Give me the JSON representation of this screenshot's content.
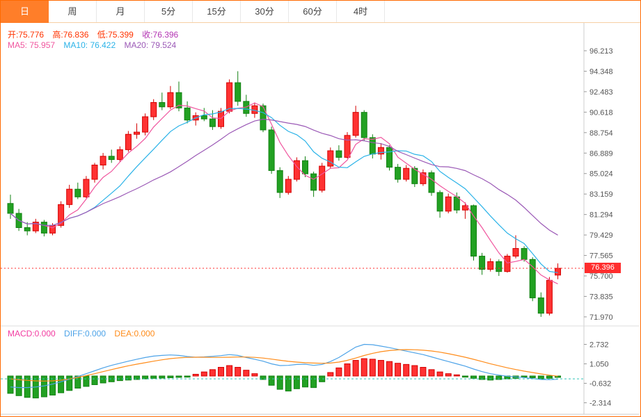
{
  "toolbar": {
    "tabs": [
      {
        "label": "日",
        "selected": true
      },
      {
        "label": "周",
        "selected": false
      },
      {
        "label": "月",
        "selected": false
      },
      {
        "label": "5分",
        "selected": false
      },
      {
        "label": "15分",
        "selected": false
      },
      {
        "label": "30分",
        "selected": false
      },
      {
        "label": "60分",
        "selected": false
      },
      {
        "label": "4时",
        "selected": false
      }
    ]
  },
  "info": {
    "open_label": "开:",
    "open": "75.776",
    "high_label": "高:",
    "high": "76.836",
    "low_label": "低:",
    "low": "75.399",
    "close_label": "收:",
    "close": "76.396",
    "ma5_label": "MA5:",
    "ma5": "75.957",
    "ma10_label": "MA10:",
    "ma10": "76.422",
    "ma20_label": "MA20:",
    "ma20": "79.524"
  },
  "macd_info": {
    "macd_label": "MACD:",
    "macd": "0.000",
    "diff_label": "DIFF:",
    "diff": "0.000",
    "dea_label": "DEA:",
    "dea": "0.000"
  },
  "price_marker": {
    "value": "76.396"
  },
  "colors": {
    "up": "#ff3232",
    "up_stroke": "#d40000",
    "down": "#22a122",
    "down_stroke": "#128112",
    "ma5": "#f0559e",
    "ma10": "#2bb3e8",
    "ma20": "#9b59b6",
    "diff": "#4da3e8",
    "dea": "#ff8c1a",
    "macd_label": "#f23ba0",
    "ohlc_red": "#ff3300",
    "close_purple": "#b334b3",
    "price_line": "#ff2d2d",
    "macd_dash_line": "#2ec4b6",
    "axis_text": "#555",
    "axis_line": "#cccccc"
  },
  "chart_data": {
    "type": "candlestick+macd",
    "main": {
      "y_ticks": [
        96.213,
        94.348,
        92.483,
        90.618,
        88.754,
        86.889,
        85.024,
        83.159,
        81.294,
        79.429,
        77.565,
        75.7,
        73.835,
        71.97
      ],
      "current_price": 76.396,
      "ma_periods": [
        5,
        10,
        20
      ],
      "candles": [
        [
          82.3,
          83.1,
          80.9,
          81.4
        ],
        [
          81.4,
          81.8,
          79.8,
          80.1
        ],
        [
          80.1,
          80.6,
          79.4,
          79.8
        ],
        [
          79.8,
          80.9,
          79.6,
          80.6
        ],
        [
          80.6,
          80.8,
          79.3,
          79.6
        ],
        [
          79.6,
          80.5,
          79.4,
          80.3
        ],
        [
          80.3,
          82.5,
          80.1,
          82.2
        ],
        [
          82.2,
          84.0,
          81.9,
          83.6
        ],
        [
          83.6,
          84.2,
          82.7,
          82.9
        ],
        [
          82.9,
          84.8,
          82.8,
          84.5
        ],
        [
          84.5,
          86.0,
          84.2,
          85.8
        ],
        [
          85.8,
          86.9,
          85.4,
          86.6
        ],
        [
          86.6,
          87.2,
          86.0,
          86.3
        ],
        [
          86.3,
          87.5,
          86.1,
          87.2
        ],
        [
          87.2,
          88.9,
          87.0,
          88.6
        ],
        [
          88.6,
          89.6,
          88.2,
          88.8
        ],
        [
          88.8,
          90.5,
          88.5,
          90.2
        ],
        [
          90.2,
          91.8,
          89.9,
          91.5
        ],
        [
          91.5,
          92.4,
          90.8,
          91.1
        ],
        [
          91.1,
          93.0,
          90.9,
          92.4
        ],
        [
          92.4,
          93.4,
          90.7,
          91.0
        ],
        [
          91.0,
          91.6,
          89.6,
          89.9
        ],
        [
          89.9,
          90.6,
          89.4,
          90.3
        ],
        [
          90.3,
          91.0,
          89.8,
          90.0
        ],
        [
          90.0,
          90.8,
          89.0,
          89.3
        ],
        [
          89.3,
          91.0,
          89.1,
          90.7
        ],
        [
          90.7,
          93.6,
          90.5,
          93.3
        ],
        [
          93.3,
          94.348,
          91.2,
          91.6
        ],
        [
          91.6,
          92.2,
          90.2,
          90.5
        ],
        [
          90.5,
          91.5,
          90.1,
          91.2
        ],
        [
          91.2,
          91.4,
          88.8,
          89.0
        ],
        [
          89.0,
          89.3,
          85.0,
          85.3
        ],
        [
          85.3,
          85.6,
          82.8,
          83.3
        ],
        [
          83.3,
          84.8,
          83.1,
          84.5
        ],
        [
          84.5,
          86.5,
          84.3,
          86.2
        ],
        [
          86.2,
          86.6,
          84.7,
          85.0
        ],
        [
          85.0,
          85.2,
          82.9,
          83.5
        ],
        [
          83.5,
          86.0,
          83.3,
          85.7
        ],
        [
          85.7,
          87.4,
          85.5,
          87.1
        ],
        [
          87.1,
          87.6,
          86.2,
          86.5
        ],
        [
          86.5,
          88.8,
          86.4,
          88.5
        ],
        [
          88.5,
          91.2,
          88.3,
          90.6
        ],
        [
          90.6,
          90.8,
          88.0,
          88.3
        ],
        [
          88.3,
          88.6,
          86.4,
          86.8
        ],
        [
          86.8,
          87.8,
          86.3,
          87.4
        ],
        [
          87.4,
          87.6,
          85.3,
          85.6
        ],
        [
          85.6,
          85.9,
          84.2,
          84.5
        ],
        [
          84.5,
          85.8,
          84.3,
          85.5
        ],
        [
          85.5,
          85.7,
          83.8,
          84.1
        ],
        [
          84.1,
          85.4,
          83.9,
          85.1
        ],
        [
          85.1,
          85.3,
          83.0,
          83.3
        ],
        [
          83.3,
          83.5,
          81.0,
          81.6
        ],
        [
          81.6,
          83.2,
          81.4,
          82.9
        ],
        [
          82.9,
          83.3,
          81.4,
          81.7
        ],
        [
          81.7,
          82.4,
          80.9,
          82.1
        ],
        [
          82.1,
          82.2,
          77.1,
          77.5
        ],
        [
          77.5,
          77.8,
          75.8,
          76.3
        ],
        [
          76.3,
          77.3,
          76.1,
          77.0
        ],
        [
          77.0,
          77.2,
          75.7,
          76.1
        ],
        [
          76.1,
          77.7,
          76.0,
          77.5
        ],
        [
          77.5,
          79.4,
          77.3,
          78.2
        ],
        [
          78.2,
          78.4,
          77.0,
          77.2
        ],
        [
          77.2,
          77.4,
          73.4,
          73.7
        ],
        [
          73.7,
          74.2,
          71.97,
          72.3
        ],
        [
          72.3,
          75.6,
          72.1,
          75.3
        ],
        [
          75.776,
          76.836,
          75.399,
          76.396
        ]
      ]
    },
    "macd": {
      "y_ticks": [
        2.732,
        1.05,
        -0.632,
        -2.314
      ],
      "current_line": -0.25,
      "hist": [
        -1.5,
        -1.7,
        -1.85,
        -1.9,
        -1.8,
        -1.65,
        -1.45,
        -1.25,
        -1.05,
        -0.9,
        -0.75,
        -0.6,
        -0.5,
        -0.4,
        -0.35,
        -0.3,
        -0.25,
        -0.2,
        -0.18,
        -0.15,
        -0.12,
        -0.1,
        0.15,
        0.35,
        0.55,
        0.75,
        0.9,
        0.75,
        0.5,
        0.2,
        -0.3,
        -0.8,
        -1.15,
        -1.3,
        -1.1,
        -0.95,
        -1.0,
        -0.5,
        0.3,
        0.7,
        1.05,
        1.35,
        1.5,
        1.45,
        1.35,
        1.25,
        1.1,
        1.0,
        0.9,
        0.75,
        0.55,
        0.35,
        0.2,
        0.1,
        -0.1,
        -0.2,
        -0.3,
        -0.35,
        -0.3,
        -0.25,
        -0.2,
        -0.1,
        -0.15,
        -0.25,
        -0.2,
        -0.12
      ],
      "diff": [
        -0.95,
        -1.0,
        -1.0,
        -0.95,
        -0.85,
        -0.7,
        -0.5,
        -0.28,
        -0.05,
        0.2,
        0.45,
        0.7,
        0.92,
        1.1,
        1.28,
        1.45,
        1.6,
        1.72,
        1.78,
        1.82,
        1.78,
        1.68,
        1.62,
        1.65,
        1.7,
        1.76,
        1.85,
        1.78,
        1.6,
        1.45,
        1.28,
        1.05,
        0.9,
        0.92,
        1.0,
        1.02,
        0.92,
        1.0,
        1.25,
        1.6,
        2.05,
        2.5,
        2.73,
        2.7,
        2.58,
        2.45,
        2.3,
        2.15,
        2.0,
        1.85,
        1.65,
        1.45,
        1.25,
        1.05,
        0.85,
        0.6,
        0.38,
        0.2,
        0.08,
        -0.02,
        -0.08,
        -0.14,
        -0.22,
        -0.3,
        -0.32,
        -0.28
      ],
      "dea": [
        -0.25,
        -0.32,
        -0.38,
        -0.42,
        -0.44,
        -0.42,
        -0.36,
        -0.26,
        -0.12,
        0.03,
        0.2,
        0.38,
        0.55,
        0.72,
        0.88,
        1.02,
        1.15,
        1.28,
        1.4,
        1.5,
        1.57,
        1.61,
        1.62,
        1.62,
        1.61,
        1.61,
        1.62,
        1.64,
        1.64,
        1.61,
        1.55,
        1.46,
        1.36,
        1.27,
        1.2,
        1.15,
        1.12,
        1.1,
        1.12,
        1.2,
        1.35,
        1.55,
        1.77,
        1.96,
        2.1,
        2.2,
        2.26,
        2.28,
        2.27,
        2.23,
        2.16,
        2.06,
        1.93,
        1.78,
        1.62,
        1.44,
        1.25,
        1.06,
        0.88,
        0.71,
        0.56,
        0.42,
        0.3,
        0.18,
        0.07,
        -0.02
      ]
    }
  }
}
